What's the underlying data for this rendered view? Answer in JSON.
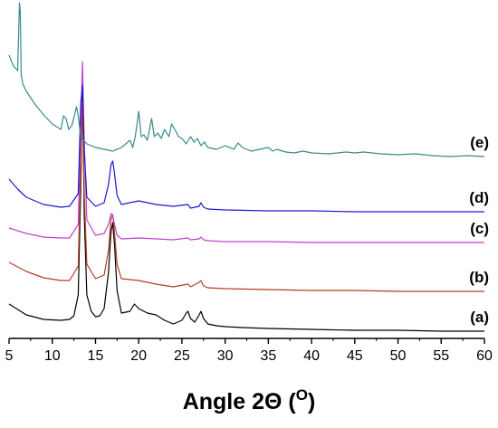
{
  "chart_data": {
    "type": "line",
    "xlabel": "Angle 2Θ (",
    "xlabel_unit": "O",
    "xlabel_close": ")",
    "xlim": [
      5,
      60
    ],
    "xticks": [
      "5",
      "10",
      "15",
      "20",
      "25",
      "30",
      "35",
      "40",
      "45",
      "50",
      "55",
      "60"
    ],
    "y_axis": "hidden (stacked, arbitrary intensity units)",
    "grid": false,
    "series": [
      {
        "name": "(a)",
        "color": "#000000",
        "offset": 0,
        "x": [
          5,
          7,
          9,
          11,
          12,
          12.5,
          13,
          13.3,
          13.5,
          13.7,
          14,
          14.5,
          15,
          15.5,
          16,
          16.5,
          16.8,
          17,
          17.2,
          17.5,
          18,
          19,
          19.5,
          20,
          21,
          22,
          23,
          24,
          25,
          25.5,
          25.7,
          26,
          26.5,
          27,
          27.2,
          27.5,
          28,
          29,
          30,
          32,
          35,
          40,
          45,
          50,
          55,
          60
        ],
        "y": [
          30,
          18,
          13,
          12,
          13,
          17,
          40,
          160,
          280,
          130,
          40,
          22,
          16,
          17,
          25,
          65,
          110,
          120,
          95,
          45,
          20,
          22,
          30,
          25,
          20,
          18,
          12,
          8,
          12,
          20,
          22,
          14,
          10,
          18,
          22,
          14,
          8,
          6,
          5,
          4,
          3,
          2,
          1,
          1,
          0,
          0
        ]
      },
      {
        "name": "(b)",
        "color": "#b24020",
        "offset": 44,
        "x": [
          5,
          7,
          9,
          11,
          12,
          13,
          13.3,
          13.5,
          13.7,
          14,
          15,
          16,
          16.5,
          16.8,
          17,
          17.2,
          17.5,
          18,
          20,
          22,
          24,
          25.7,
          26,
          27,
          27.2,
          27.5,
          28,
          30,
          35,
          40,
          45,
          50,
          55,
          60
        ],
        "y": [
          32,
          22,
          15,
          12,
          12,
          28,
          140,
          210,
          110,
          30,
          14,
          18,
          45,
          80,
          85,
          65,
          30,
          14,
          12,
          8,
          5,
          8,
          5,
          10,
          12,
          6,
          4,
          3,
          2,
          1,
          1,
          0,
          0,
          0
        ]
      },
      {
        "name": "(c)",
        "color": "#c040d0",
        "offset": 98,
        "x": [
          5,
          7,
          9,
          11,
          12,
          13,
          13.3,
          13.5,
          13.7,
          14,
          15,
          16,
          16.5,
          16.8,
          17,
          17.2,
          17.5,
          18,
          20,
          22,
          24,
          25.7,
          26,
          27,
          27.2,
          27.5,
          28,
          30,
          35,
          40,
          45,
          50,
          55,
          60
        ],
        "y": [
          16,
          10,
          6,
          5,
          5,
          20,
          130,
          200,
          110,
          25,
          8,
          10,
          20,
          32,
          30,
          20,
          8,
          4,
          5,
          4,
          3,
          5,
          3,
          4,
          6,
          3,
          2,
          1,
          1,
          0,
          0,
          0,
          0,
          0
        ]
      },
      {
        "name": "(d)",
        "color": "#1a1ad0",
        "offset": 132,
        "x": [
          5,
          6,
          7,
          9,
          11,
          12,
          13,
          13.3,
          13.5,
          13.7,
          14,
          15,
          16,
          16.5,
          16.8,
          17,
          17.2,
          17.5,
          18,
          19,
          20,
          22,
          24,
          25.7,
          26,
          27,
          27.2,
          27.5,
          28,
          30,
          35,
          40,
          45,
          50,
          55,
          60
        ],
        "y": [
          36,
          25,
          16,
          8,
          5,
          6,
          20,
          120,
          140,
          70,
          16,
          6,
          10,
          30,
          52,
          56,
          42,
          18,
          8,
          10,
          12,
          8,
          6,
          8,
          4,
          6,
          10,
          5,
          3,
          2,
          1,
          1,
          0,
          0,
          0,
          0
        ]
      },
      {
        "name": "(e)",
        "color": "#3a8a8a",
        "offset": 193,
        "x": [
          5,
          5.5,
          6,
          6.2,
          6.3,
          6.4,
          6.6,
          7,
          8,
          9,
          10,
          11,
          11.3,
          11.6,
          11.9,
          12.3,
          12.8,
          13,
          13.3,
          13.6,
          14,
          15,
          16,
          17,
          18,
          19,
          19.3,
          19.6,
          20,
          20.3,
          20.6,
          21,
          21.5,
          21.8,
          22.2,
          22.6,
          23,
          23.5,
          23.8,
          24.3,
          24.6,
          25,
          25.5,
          26,
          26.4,
          26.8,
          27.2,
          27.6,
          28,
          29,
          30,
          31,
          31.5,
          32,
          33,
          34,
          35,
          35.5,
          36,
          37,
          38,
          39,
          40,
          42,
          44,
          45,
          46,
          48,
          50,
          52,
          54,
          56,
          58,
          60
        ],
        "y": [
          112,
          100,
          95,
          170,
          160,
          90,
          80,
          72,
          58,
          46,
          36,
          30,
          45,
          42,
          30,
          35,
          55,
          45,
          22,
          18,
          14,
          10,
          8,
          6,
          10,
          18,
          10,
          22,
          50,
          22,
          24,
          18,
          42,
          22,
          26,
          20,
          30,
          22,
          36,
          28,
          22,
          20,
          14,
          22,
          16,
          20,
          12,
          16,
          10,
          8,
          12,
          8,
          15,
          10,
          6,
          8,
          10,
          6,
          8,
          5,
          4,
          6,
          4,
          3,
          5,
          4,
          5,
          3,
          2,
          3,
          1,
          0,
          1,
          0
        ]
      }
    ]
  }
}
